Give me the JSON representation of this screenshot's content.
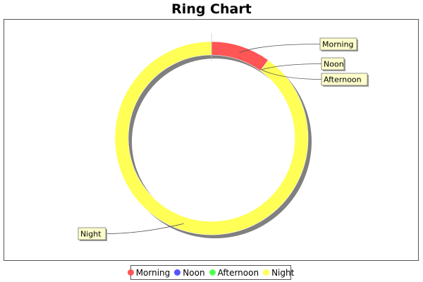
{
  "chart_data": {
    "type": "pie",
    "subtype": "ring",
    "title": "Ring Chart",
    "categories": [
      "Morning",
      "Noon",
      "Afternoon",
      "Night"
    ],
    "values": [
      10,
      0,
      0,
      90
    ],
    "colors": [
      "#ff5555",
      "#5555ff",
      "#55ff55",
      "#ffff55"
    ],
    "legend_position": "bottom",
    "labels_shown": [
      "Morning",
      "Noon",
      "Afternoon",
      "Night"
    ]
  }
}
